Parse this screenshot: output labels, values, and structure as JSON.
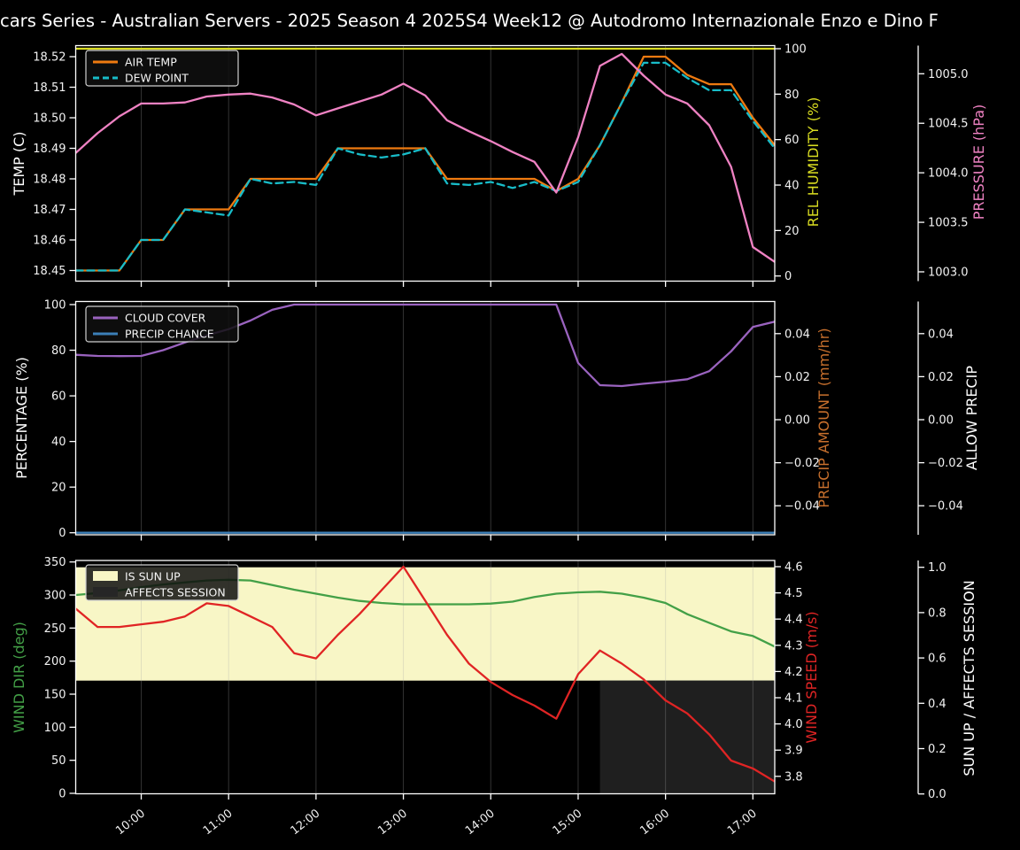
{
  "title": "cars Series - Australian Servers - 2025 Season 4 2025S4 Week12 @ Autodromo Internazionale Enzo e Dino F",
  "figure": {
    "background": "#000000",
    "grid_color": "rgba(170,170,170,0.30)",
    "spine_color": "#ffffff"
  },
  "x_axis": {
    "tick_labels": [
      "10:00",
      "11:00",
      "12:00",
      "13:00",
      "14:00",
      "15:00",
      "16:00",
      "17:00"
    ],
    "tick_hours": [
      10,
      11,
      12,
      13,
      14,
      15,
      16,
      17
    ],
    "range_hours": [
      9.25,
      17.25
    ]
  },
  "chart_data": [
    {
      "panel": "temperature-humidity-pressure",
      "type": "line",
      "x_hours": [
        9.25,
        9.5,
        9.75,
        10,
        10.25,
        10.5,
        10.75,
        11,
        11.25,
        11.5,
        11.75,
        12,
        12.25,
        12.5,
        12.75,
        13,
        13.25,
        13.5,
        13.75,
        14,
        14.25,
        14.5,
        14.75,
        15,
        15.25,
        15.5,
        15.75,
        16,
        16.25,
        16.5,
        16.75,
        17,
        17.25
      ],
      "axes": {
        "left": {
          "label": "TEMP (C)",
          "color": "#ffffff",
          "tick_values": [
            18.45,
            18.46,
            18.47,
            18.48,
            18.49,
            18.5,
            18.51,
            18.52
          ],
          "tick_labels": [
            "18.45",
            "18.46",
            "18.47",
            "18.48",
            "18.49",
            "18.50",
            "18.51",
            "18.52"
          ]
        },
        "right1": {
          "label": "REL HUMIDITY (%)",
          "color": "#d9dc21",
          "tick_values": [
            0,
            20,
            40,
            60,
            80,
            100
          ],
          "tick_labels": [
            "0",
            "20",
            "40",
            "60",
            "80",
            "100"
          ]
        },
        "right2": {
          "label": "PRESSURE (hPa)",
          "color": "#ef82c3",
          "tick_values": [
            1003.0,
            1003.5,
            1004.0,
            1004.5,
            1005.0
          ],
          "tick_labels": [
            "1003.0",
            "1003.5",
            "1004.0",
            "1004.5",
            "1005.0"
          ]
        }
      },
      "series": [
        {
          "name": "AIR TEMP",
          "axis": "left",
          "color": "#ee7a10",
          "dash": false,
          "values": [
            18.45,
            18.45,
            18.45,
            18.46,
            18.46,
            18.47,
            18.47,
            18.47,
            18.48,
            18.48,
            18.48,
            18.48,
            18.49,
            18.49,
            18.49,
            18.49,
            18.49,
            18.48,
            18.48,
            18.48,
            18.48,
            18.48,
            18.476,
            18.48,
            18.491,
            18.505,
            18.52,
            18.52,
            18.514,
            18.511,
            18.511,
            18.5,
            18.491
          ]
        },
        {
          "name": "DEW POINT",
          "axis": "left",
          "color": "#18bcc8",
          "dash": true,
          "values": [
            18.45,
            18.45,
            18.45,
            18.46,
            18.46,
            18.47,
            18.469,
            18.468,
            18.48,
            18.4785,
            18.479,
            18.478,
            18.49,
            18.488,
            18.487,
            18.488,
            18.49,
            18.4785,
            18.478,
            18.479,
            18.477,
            18.479,
            18.476,
            18.479,
            18.491,
            18.505,
            18.518,
            18.518,
            18.513,
            18.509,
            18.509,
            18.499,
            18.49
          ]
        },
        {
          "name": "REL HUMIDITY",
          "axis": "right1",
          "color": "#d9dc21",
          "dash": false,
          "values": [
            100,
            100,
            100,
            100,
            100,
            100,
            100,
            100,
            100,
            100,
            100,
            100,
            100,
            100,
            100,
            100,
            100,
            100,
            100,
            100,
            100,
            100,
            100,
            100,
            100,
            100,
            100,
            100,
            100,
            100,
            100,
            100,
            100
          ]
        },
        {
          "name": "PRESSURE",
          "axis": "right2",
          "color": "#ef82c3",
          "dash": false,
          "values": [
            1004.2,
            1004.4,
            1004.57,
            1004.7,
            1004.7,
            1004.71,
            1004.77,
            1004.79,
            1004.8,
            1004.76,
            1004.69,
            1004.58,
            1004.65,
            1004.72,
            1004.79,
            1004.9,
            1004.78,
            1004.53,
            1004.42,
            1004.32,
            1004.21,
            1004.11,
            1003.8,
            1004.36,
            1005.08,
            1005.2,
            1004.98,
            1004.79,
            1004.7,
            1004.48,
            1004.06,
            1003.25,
            1003.1
          ]
        }
      ],
      "legend": {
        "entries": [
          {
            "label": "AIR TEMP",
            "color": "#ee7a10",
            "dash": false,
            "kind": "line"
          },
          {
            "label": "DEW POINT",
            "color": "#18bcc8",
            "dash": true,
            "kind": "line"
          }
        ]
      }
    },
    {
      "panel": "cloud-precip",
      "type": "line",
      "x_hours": [
        9.25,
        9.5,
        9.75,
        10,
        10.25,
        10.5,
        10.75,
        11,
        11.25,
        11.5,
        11.75,
        12,
        12.25,
        12.5,
        12.75,
        13,
        13.25,
        13.5,
        13.75,
        14,
        14.25,
        14.5,
        14.75,
        15,
        15.25,
        15.5,
        15.75,
        16,
        16.25,
        16.5,
        16.75,
        17,
        17.25
      ],
      "axes": {
        "left": {
          "label": "PERCENTAGE (%)",
          "color": "#ffffff",
          "tick_values": [
            0,
            20,
            40,
            60,
            80,
            100
          ],
          "tick_labels": [
            "0",
            "20",
            "40",
            "60",
            "80",
            "100"
          ]
        },
        "right1": {
          "label": "PRECIP AMOUNT (mm/hr)",
          "color": "#c8702d",
          "tick_values": [
            -0.04,
            -0.02,
            0,
            0.02,
            0.04
          ],
          "tick_labels": [
            "−0.04",
            "−0.02",
            "0.00",
            "0.02",
            "0.04"
          ]
        },
        "right2": {
          "label": "ALLOW PRECIP",
          "color": "#ffffff",
          "tick_values": [
            -0.04,
            -0.02,
            0,
            0.02,
            0.04
          ],
          "tick_labels": [
            "−0.04",
            "−0.02",
            "0.00",
            "0.02",
            "0.04"
          ]
        }
      },
      "series": [
        {
          "name": "CLOUD COVER",
          "axis": "left",
          "color": "#9a63bf",
          "dash": false,
          "values": [
            78,
            77.5,
            77.4,
            77.5,
            80,
            83.4,
            86.5,
            89.2,
            93,
            97.7,
            100,
            100,
            100,
            100,
            100,
            100,
            100,
            100,
            100,
            100,
            100,
            100,
            100,
            74.4,
            64.7,
            64.3,
            65.3,
            66.2,
            67.3,
            70.8,
            79.5,
            90.2,
            92.5
          ]
        },
        {
          "name": "PRECIP CHANCE",
          "axis": "left",
          "color": "#3c7fb8",
          "dash": false,
          "values": [
            0,
            0,
            0,
            0,
            0,
            0,
            0,
            0,
            0,
            0,
            0,
            0,
            0,
            0,
            0,
            0,
            0,
            0,
            0,
            0,
            0,
            0,
            0,
            0,
            0,
            0,
            0,
            0,
            0,
            0,
            0,
            0,
            0
          ]
        }
      ],
      "legend": {
        "entries": [
          {
            "label": "CLOUD COVER",
            "color": "#9a63bf",
            "dash": false,
            "kind": "line"
          },
          {
            "label": "PRECIP CHANCE",
            "color": "#3c7fb8",
            "dash": false,
            "kind": "line"
          }
        ]
      }
    },
    {
      "panel": "wind-sun",
      "type": "line",
      "x_hours": [
        9.25,
        9.5,
        9.75,
        10,
        10.25,
        10.5,
        10.75,
        11,
        11.25,
        11.5,
        11.75,
        12,
        12.25,
        12.5,
        12.75,
        13,
        13.25,
        13.5,
        13.75,
        14,
        14.25,
        14.5,
        14.75,
        15,
        15.25,
        15.5,
        15.75,
        16,
        16.25,
        16.5,
        16.75,
        17,
        17.25
      ],
      "axes": {
        "left": {
          "label": "WIND DIR (deg)",
          "color": "#43a047",
          "tick_values": [
            0,
            50,
            100,
            150,
            200,
            250,
            300,
            350
          ],
          "tick_labels": [
            "0",
            "50",
            "100",
            "150",
            "200",
            "250",
            "300",
            "350"
          ]
        },
        "right1": {
          "label": "WIND SPEED (m/s)",
          "color": "#e02424",
          "tick_values": [
            3.8,
            3.9,
            4.0,
            4.1,
            4.2,
            4.3,
            4.4,
            4.5,
            4.6
          ],
          "tick_labels": [
            "3.8",
            "3.9",
            "4.0",
            "4.1",
            "4.2",
            "4.3",
            "4.4",
            "4.5",
            "4.6"
          ]
        },
        "right2": {
          "label": "SUN UP / AFFECTS SESSION",
          "color": "#ffffff",
          "tick_values": [
            0.0,
            0.2,
            0.4,
            0.6,
            0.8,
            1.0
          ],
          "tick_labels": [
            "0.0",
            "0.2",
            "0.4",
            "0.6",
            "0.8",
            "1.0"
          ]
        }
      },
      "bands": [
        {
          "name": "IS SUN UP",
          "color": "#f8f6c6",
          "x_range_hours": [
            9.25,
            17.25
          ],
          "sun_range": [
            0.5,
            1.0
          ]
        },
        {
          "name": "AFFECTS SESSION",
          "color": "#1f1f1f",
          "x_range_hours": [
            15.25,
            17.25
          ],
          "sun_range": [
            0.0,
            0.5
          ]
        }
      ],
      "series": [
        {
          "name": "WIND DIR",
          "axis": "left",
          "color": "#43a047",
          "dash": false,
          "values": [
            300,
            303,
            307,
            312,
            316,
            319,
            322,
            323,
            322,
            315,
            308,
            302,
            296,
            291,
            288,
            286,
            286,
            286,
            286,
            287,
            290,
            297,
            302,
            304,
            305,
            302,
            296,
            288,
            271,
            258,
            245,
            238,
            222
          ]
        },
        {
          "name": "WIND SPEED",
          "axis": "right1",
          "color": "#e02424",
          "dash": false,
          "values": [
            4.44,
            4.37,
            4.37,
            4.38,
            4.39,
            4.41,
            4.46,
            4.45,
            4.41,
            4.37,
            4.27,
            4.25,
            4.34,
            4.42,
            4.51,
            4.6,
            4.47,
            4.34,
            4.23,
            4.16,
            4.11,
            4.07,
            4.02,
            4.19,
            4.28,
            4.23,
            4.17,
            4.09,
            4.04,
            3.96,
            3.86,
            3.83,
            3.78
          ]
        }
      ],
      "legend": {
        "entries": [
          {
            "label": "IS SUN UP",
            "color": "#f8f6c6",
            "kind": "patch"
          },
          {
            "label": "AFFECTS SESSION",
            "color": "#262626",
            "kind": "patch"
          }
        ]
      }
    }
  ]
}
